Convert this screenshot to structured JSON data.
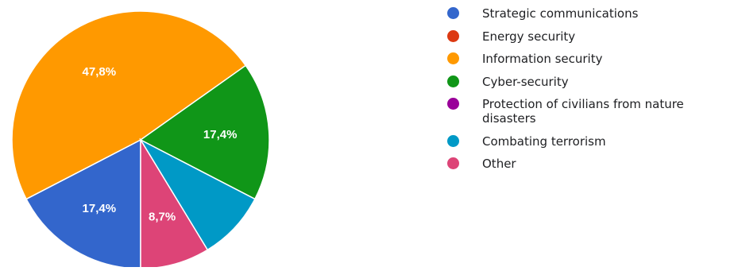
{
  "chart_data": {
    "type": "pie",
    "slices": [
      {
        "name": "Strategic communications",
        "value": 17.4,
        "label": "17,4%",
        "color": "#3366cc"
      },
      {
        "name": "Energy security",
        "value": 0,
        "label": "",
        "color": "#dc3912"
      },
      {
        "name": "Information security",
        "value": 47.8,
        "label": "47,8%",
        "color": "#ff9900"
      },
      {
        "name": "Cyber-security",
        "value": 17.4,
        "label": "17,4%",
        "color": "#109618"
      },
      {
        "name": "Protection of civilians from nature disasters",
        "value": 0,
        "label": "",
        "color": "#990099"
      },
      {
        "name": "Combating terrorism",
        "value": 8.7,
        "label": "",
        "color": "#0099c6"
      },
      {
        "name": "Other",
        "value": 8.7,
        "label": "8,7%",
        "color": "#dd4477"
      }
    ],
    "legend_position": "right"
  }
}
